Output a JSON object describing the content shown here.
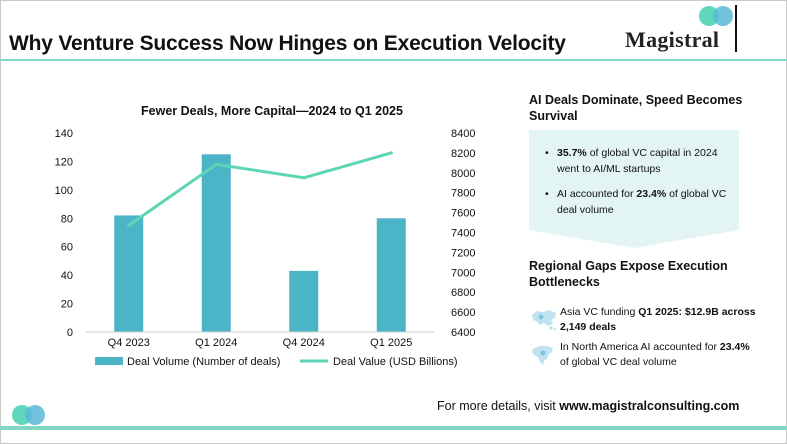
{
  "header": {
    "title": "Why Venture Success Now Hinges on Execution Velocity",
    "brand": "Magistral",
    "accent_color": "#7fd7c4",
    "logo_colors": [
      "#4fd1b5",
      "#5ab8d8"
    ]
  },
  "chart_data": {
    "type": "bar",
    "title": "Fewer Deals, More Capital—2024 to Q1 2025",
    "categories": [
      "Q4 2023",
      "Q1 2024",
      "Q4 2024",
      "Q1 2025"
    ],
    "series": [
      {
        "name": "Deal Volume (Number of deals)",
        "kind": "bar",
        "axis": "left",
        "color": "#4bb4c6",
        "values": [
          82,
          125,
          43,
          80
        ]
      },
      {
        "name": "Deal Value (USD Billions)",
        "kind": "line",
        "axis": "right",
        "color": "#5ed6b5",
        "values": [
          7470,
          8085,
          7950,
          8200
        ]
      }
    ],
    "ylim_left": [
      0,
      140
    ],
    "yticks_left": [
      "0",
      "20",
      "40",
      "60",
      "80",
      "100",
      "120",
      "140"
    ],
    "ylim_right": [
      6400,
      8400
    ],
    "yticks_right": [
      "6400",
      "6600",
      "6800",
      "7000",
      "7200",
      "7400",
      "7600",
      "7800",
      "8000",
      "8200",
      "8400"
    ],
    "grid": false,
    "legend": "bottom"
  },
  "section1": {
    "title": "AI Deals Dominate, Speed Becomes Survival",
    "bullets": [
      {
        "bold": "35.7%",
        "text": " of global VC capital in 2024 went to AI/ML startups"
      },
      {
        "pre": "AI accounted for ",
        "bold": "23.4%",
        "text": " of global VC deal volume"
      }
    ]
  },
  "section2": {
    "title": "Regional Gaps Expose Execution Bottlenecks",
    "items": [
      {
        "icon": "asia-map-icon",
        "pre": "Asia VC funding ",
        "bold": "Q1 2025: $12.9B across 2,149 deals"
      },
      {
        "icon": "north-america-map-icon",
        "pre": "In North America AI accounted for ",
        "bold": "23.4%",
        "text": " of global VC deal volume"
      }
    ]
  },
  "footer": {
    "prefix": "For more details, visit ",
    "url": "www.magistralconsulting.com"
  }
}
